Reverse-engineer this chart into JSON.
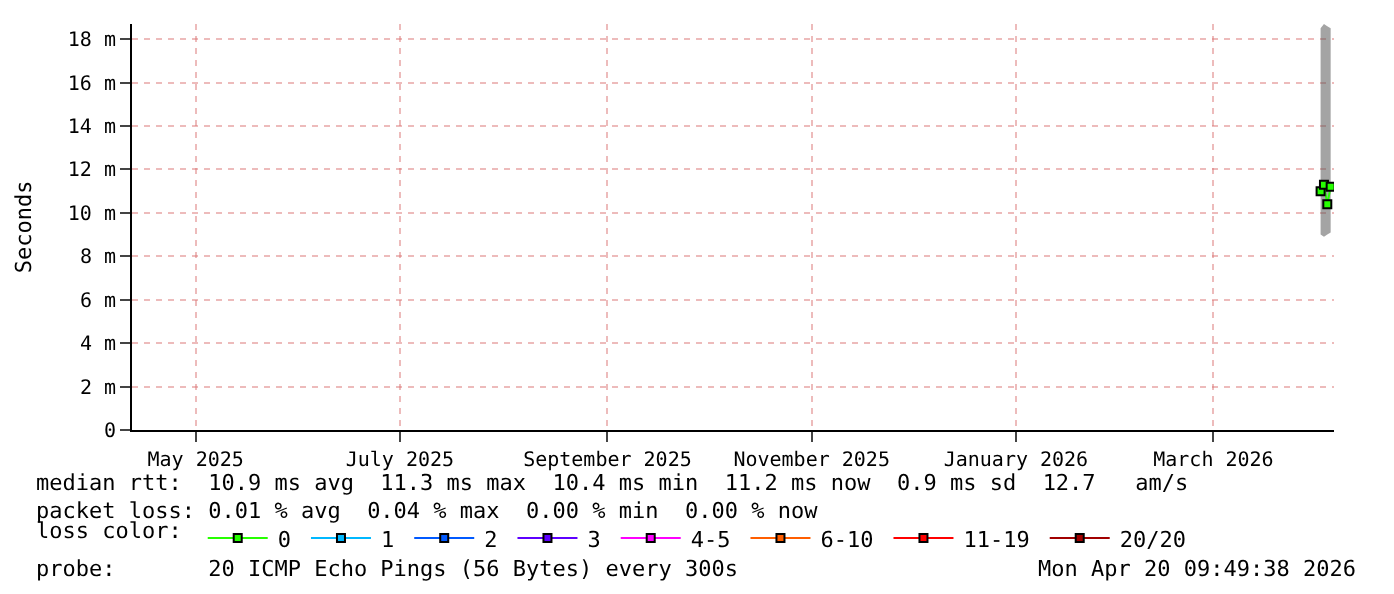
{
  "chart_data": {
    "type": "line",
    "ylabel": "Seconds",
    "legend_title": "loss color:",
    "legend": "bottom",
    "grid": true,
    "marker": "square",
    "xlim": [
      "2025-04-12",
      "2026-04-06"
    ],
    "xticks": [
      {
        "value": "2025-05-01",
        "label": "May 2025"
      },
      {
        "value": "2025-07-01",
        "label": "July 2025"
      },
      {
        "value": "2025-09-01",
        "label": "September 2025"
      },
      {
        "value": "2025-11-01",
        "label": "November 2025"
      },
      {
        "value": "2026-01-01",
        "label": "January 2026"
      },
      {
        "value": "2026-03-01",
        "label": "March 2026"
      }
    ],
    "ylim": [
      0,
      18.7
    ],
    "yticks": [
      0,
      {
        "value": 2,
        "label": "2 m"
      },
      {
        "value": 4,
        "label": "4 m"
      },
      {
        "value": 6,
        "label": "6 m"
      },
      {
        "value": 8,
        "label": "8 m"
      },
      {
        "value": 10,
        "label": "10 m"
      },
      {
        "value": 12,
        "label": "12 m"
      },
      {
        "value": 14,
        "label": "14 m"
      },
      {
        "value": 16,
        "label": "16 m"
      },
      {
        "value": 18,
        "label": "18 m"
      }
    ],
    "x": [
      "2026-04-02",
      "2026-04-03",
      "2026-04-04",
      "2026-04-05"
    ],
    "series": [
      {
        "name": "0",
        "color": "#26ff00",
        "values": [
          11.0,
          11.3,
          10.4,
          11.2
        ],
        "lower": [
          9.0,
          8.9,
          9.0,
          9.1
        ],
        "upper": [
          18.5,
          18.7,
          18.6,
          18.5
        ]
      },
      {
        "name": "1",
        "color": "#00b8ff",
        "values": [
          null,
          null,
          null,
          null
        ]
      },
      {
        "name": "2",
        "color": "#0059ff",
        "values": [
          null,
          null,
          null,
          null
        ]
      },
      {
        "name": "3",
        "color": "#5e00ff",
        "values": [
          null,
          null,
          null,
          null
        ]
      },
      {
        "name": "4-5",
        "color": "#ff00ff",
        "values": [
          null,
          null,
          null,
          null
        ]
      },
      {
        "name": "6-10",
        "color": "#ff5e00",
        "values": [
          null,
          null,
          null,
          null
        ]
      },
      {
        "name": "11-19",
        "color": "#ff0000",
        "values": [
          null,
          null,
          null,
          null
        ]
      },
      {
        "name": "20/20",
        "color": "#a10000",
        "values": [
          null,
          null,
          null,
          null
        ]
      }
    ],
    "annotations": [
      "median rtt:  10.9 ms avg  11.3 ms max  10.4 ms min  11.2 ms now  0.9 ms sd  12.7   am/s",
      "packet loss: 0.01 % avg  0.04 % max  0.00 % min  0.00 % now",
      "probe:       20 ICMP Echo Pings (56 Bytes) every 300s",
      "Mon Apr 20 09:49:38 2026"
    ]
  }
}
